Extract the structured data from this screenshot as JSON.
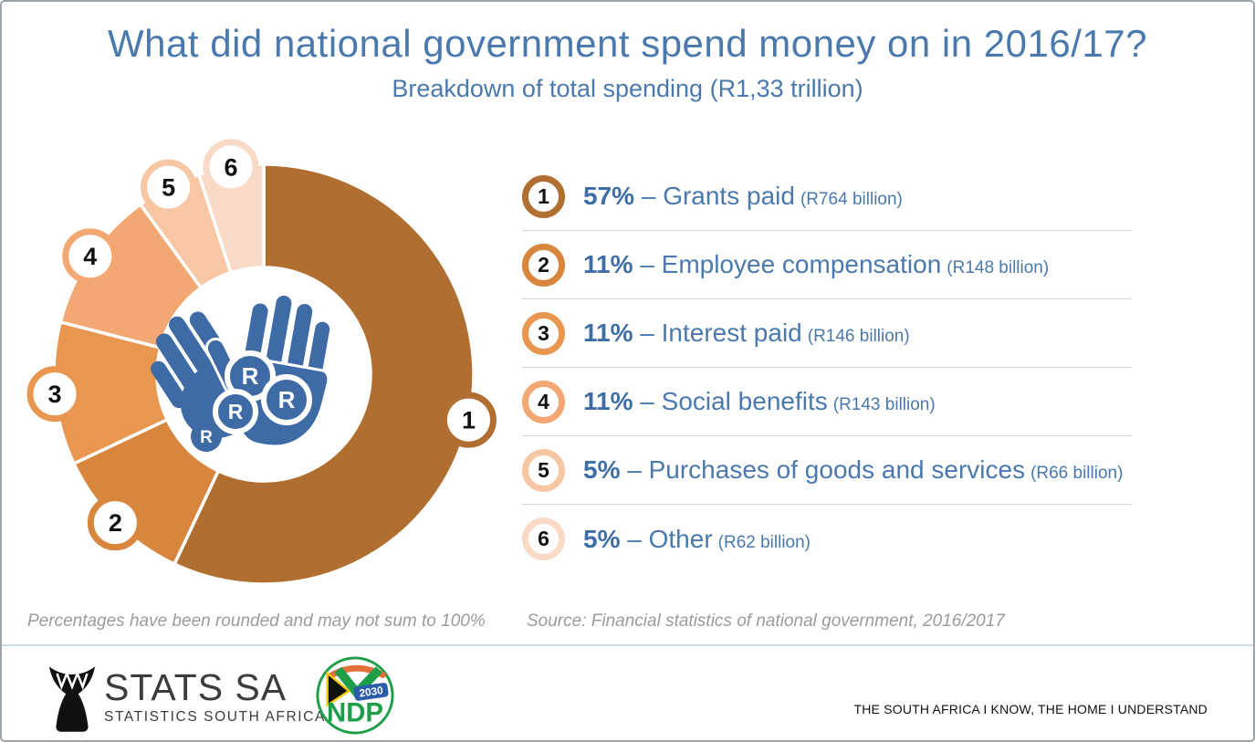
{
  "header": {
    "title": "What did national government spend money on in 2016/17?",
    "subtitle": "Breakdown of total spending (R1,33 trillion)"
  },
  "chart_data": {
    "type": "pie",
    "subtype": "donut",
    "title": "What did national government spend money on in 2016/17?",
    "subtitle": "Breakdown of total spending (R1,33 trillion)",
    "total": "R1,33 trillion",
    "start_angle_deg": 0,
    "direction": "clockwise",
    "segments": [
      {
        "number": "1",
        "pct": 57,
        "pct_label": "57%",
        "label": "Grants paid",
        "amount_label": "(R764 billion)",
        "amount_billions": 764,
        "color": "#b06f30"
      },
      {
        "number": "2",
        "pct": 11,
        "pct_label": "11%",
        "label": "Employee compensation",
        "amount_label": "(R148 billion)",
        "amount_billions": 148,
        "color": "#d8863d"
      },
      {
        "number": "3",
        "pct": 11,
        "pct_label": "11%",
        "label": "Interest paid",
        "amount_label": "(R146 billion)",
        "amount_billions": 146,
        "color": "#e99750"
      },
      {
        "number": "4",
        "pct": 11,
        "pct_label": "11%",
        "label": "Social benefits",
        "amount_label": "(R143 billion)",
        "amount_billions": 143,
        "color": "#f3a873"
      },
      {
        "number": "5",
        "pct": 5,
        "pct_label": "5%",
        "label": "Purchases of goods and services",
        "amount_label": "(R66 billion)",
        "amount_billions": 66,
        "color": "#f7c7a4"
      },
      {
        "number": "6",
        "pct": 5,
        "pct_label": "5%",
        "label": "Other",
        "amount_label": "(R62 billion)",
        "amount_billions": 62,
        "color": "#f9dac6"
      }
    ],
    "center_icon": {
      "name": "hands-receiving-money",
      "coin_letter": "R",
      "hand_color": "#3e6ba6"
    }
  },
  "legend": {
    "separator": "–"
  },
  "notes": {
    "rounding": "Percentages have been rounded and may not sum to 100%",
    "source": "Source: Financial statistics of national government, 2016/2017"
  },
  "footer": {
    "statssa": {
      "name": "STATS SA",
      "subtitle": "STATISTICS SOUTH AFRICA"
    },
    "ndp": {
      "acronym": "NDP",
      "year": "2030"
    },
    "tagline": "THE SOUTH AFRICA I KNOW, THE HOME I UNDERSTAND"
  }
}
